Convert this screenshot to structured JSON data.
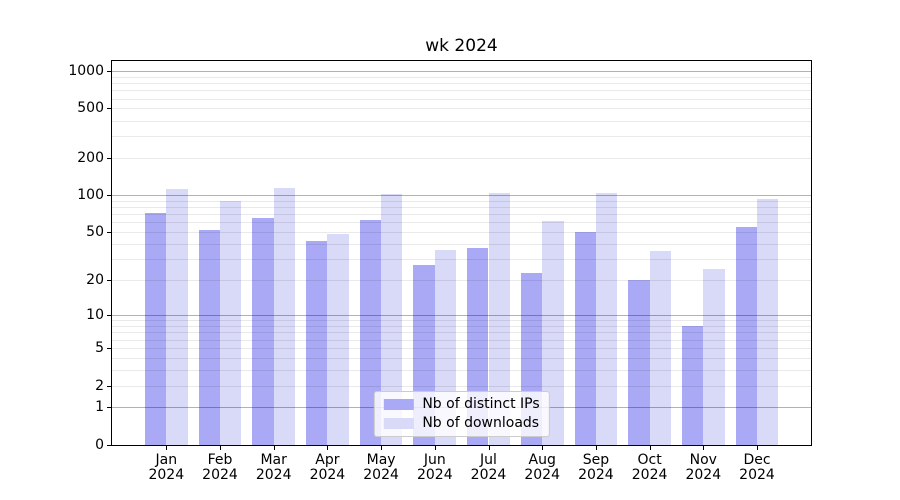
{
  "figure": {
    "background": "#ffffff"
  },
  "chart_data": {
    "type": "bar",
    "title": "wk 2024",
    "categories": [
      "Jan 2024",
      "Feb 2024",
      "Mar 2024",
      "Apr 2024",
      "May 2024",
      "Jun 2024",
      "Jul 2024",
      "Aug 2024",
      "Sep 2024",
      "Oct 2024",
      "Nov 2024",
      "Dec 2024"
    ],
    "series": [
      {
        "name": "Nb of distinct IPs",
        "color": "#a9a9f6",
        "values": [
          72,
          52,
          65,
          42,
          63,
          27,
          37,
          23,
          50,
          20,
          8,
          55
        ]
      },
      {
        "name": "Nb of downloads",
        "color": "#d9d9f8",
        "values": [
          112,
          90,
          115,
          48,
          103,
          36,
          104,
          62,
          104,
          35,
          25,
          93
        ]
      }
    ],
    "xlabel": "",
    "ylabel": "",
    "yscale": "log1p",
    "y_ticks": [
      0,
      1,
      2,
      5,
      10,
      20,
      50,
      100,
      200,
      500,
      1000
    ],
    "major_grid_values": [
      1,
      10,
      100,
      1000
    ],
    "minor_grid_decades": [
      1,
      10,
      100
    ],
    "ylim": [
      0,
      1200
    ],
    "grid": "both",
    "legend_position": "lower center",
    "colors": {
      "major_grid": "#b4b4b4",
      "minor_grid": "#eaeaea",
      "axis": "#000000",
      "legend_border": "#cccccc",
      "legend_background": "rgba(255,255,255,0.8)"
    }
  }
}
